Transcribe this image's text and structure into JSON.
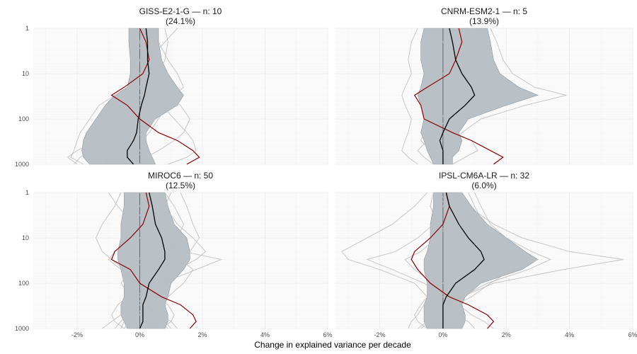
{
  "chart_data": {
    "type": "line",
    "xlabel": "Change in explained variance per decade",
    "ylabel": "",
    "xlim": [
      -3.4,
      6
    ],
    "ylim": [
      1,
      1000
    ],
    "y_scale": "log",
    "y_reversed": true,
    "x_ticks": [
      -2,
      0,
      2,
      4,
      6
    ],
    "x_tick_labels": [
      "-2%",
      "0%",
      "2%",
      "4%",
      "6%"
    ],
    "y_ticks": [
      1,
      10,
      100,
      1000
    ],
    "y_tick_labels": [
      "1",
      "10",
      "100",
      "1000"
    ],
    "grid": true,
    "legend": "none",
    "colors": {
      "panel_bg": "#fafafa",
      "grid": "#ebebeb",
      "band": "#b5bec4",
      "band_edge": "#8f999f",
      "member": "#bdbdbd",
      "median": "#000000",
      "reference": "#8b0000",
      "zero_line": "#666666"
    },
    "panels": [
      {
        "title": "GISS-E2-1-G — n: 10",
        "subtitle": "(24.1%)",
        "levels": [
          1,
          2,
          5,
          10,
          20,
          30,
          50,
          100,
          200,
          300,
          500,
          700,
          1000
        ],
        "band_low": [
          -0.35,
          -0.35,
          -0.3,
          -0.3,
          -0.4,
          -0.8,
          -1.1,
          -1.4,
          -1.7,
          -1.8,
          -1.85,
          -1.8,
          -1.6
        ],
        "band_high": [
          0.6,
          0.6,
          0.7,
          0.9,
          1.2,
          1.4,
          1.2,
          0.5,
          0.2,
          0.2,
          0.3,
          0.4,
          0.5
        ],
        "median": [
          0.2,
          0.25,
          0.25,
          0.3,
          0.2,
          0.15,
          0.05,
          -0.05,
          -0.1,
          -0.2,
          -0.4,
          -0.4,
          -0.2
        ],
        "reference": [
          0.0,
          0.2,
          0.3,
          0.1,
          -0.5,
          -0.9,
          -0.4,
          0.0,
          0.6,
          1.2,
          1.7,
          1.9,
          1.5
        ],
        "members": [
          [
            0.5,
            0.4,
            0.3,
            0.2,
            0.1,
            0.0,
            -0.2,
            -0.3,
            -0.5,
            -0.8,
            -1.0,
            -1.1,
            -1.0
          ],
          [
            -0.3,
            -0.1,
            0.2,
            0.5,
            0.8,
            1.0,
            0.9,
            0.6,
            0.3,
            0.1,
            0.0,
            -0.1,
            0.0
          ],
          [
            1.2,
            0.8,
            0.3,
            0.1,
            -0.3,
            -0.8,
            -1.3,
            -1.6,
            -1.9,
            -2.0,
            -2.1,
            -2.2,
            -1.8
          ],
          [
            0.2,
            0.4,
            0.6,
            0.7,
            0.5,
            0.2,
            -0.2,
            -0.5,
            -0.9,
            -1.4,
            -2.0,
            -2.3,
            -2.0
          ],
          [
            -0.2,
            -0.3,
            -0.2,
            0.0,
            0.4,
            0.9,
            1.3,
            1.6,
            1.4,
            1.1,
            0.6,
            0.2,
            0.0
          ],
          [
            0.8,
            0.9,
            0.8,
            0.6,
            0.4,
            0.6,
            0.8,
            0.5,
            0.1,
            -0.3,
            -0.7,
            -0.9,
            -0.6
          ],
          [
            0.0,
            0.1,
            0.3,
            0.4,
            0.1,
            -0.4,
            -1.0,
            -1.3,
            -1.1,
            -0.7,
            -0.3,
            0.2,
            0.5
          ],
          [
            0.3,
            0.2,
            0.0,
            -0.1,
            0.0,
            0.3,
            0.7,
            1.1,
            1.5,
            1.7,
            1.8,
            1.5,
            0.9
          ],
          [
            -0.1,
            0.0,
            0.1,
            0.2,
            0.3,
            0.2,
            0.0,
            -0.2,
            -0.4,
            -0.6,
            -0.8,
            -1.0,
            -1.2
          ],
          [
            0.4,
            0.6,
            0.9,
            1.2,
            1.4,
            1.1,
            0.6,
            0.0,
            -0.6,
            -1.1,
            -1.6,
            -1.9,
            -2.1
          ]
        ]
      },
      {
        "title": "CNRM-ESM2-1 — n: 5",
        "subtitle": "(13.9%)",
        "levels": [
          1,
          2,
          5,
          10,
          20,
          30,
          50,
          100,
          200,
          300,
          500,
          700,
          1000
        ],
        "band_low": [
          -0.6,
          -0.7,
          -0.7,
          -0.6,
          -0.7,
          -0.8,
          -0.7,
          -0.6,
          -0.7,
          -0.6,
          -0.5,
          -0.4,
          -0.3
        ],
        "band_high": [
          1.4,
          1.5,
          1.6,
          1.8,
          2.4,
          3.0,
          2.0,
          0.8,
          0.5,
          0.6,
          0.5,
          0.3,
          0.3
        ],
        "median": [
          0.2,
          0.3,
          0.4,
          0.6,
          0.9,
          1.0,
          0.7,
          0.2,
          0.0,
          -0.1,
          0.0,
          0.0,
          0.0
        ],
        "reference": [
          0.5,
          0.6,
          0.4,
          0.2,
          -0.5,
          -0.9,
          -0.7,
          -0.6,
          0.3,
          0.9,
          1.5,
          1.9,
          1.6
        ],
        "members": [
          [
            1.5,
            1.7,
            1.9,
            2.2,
            2.9,
            3.9,
            2.6,
            1.2,
            0.6,
            0.4,
            0.2,
            0.1,
            0.0
          ],
          [
            -0.8,
            -1.0,
            -1.1,
            -1.0,
            -1.2,
            -1.3,
            -1.2,
            -1.0,
            -1.1,
            -1.2,
            -1.3,
            -1.1,
            -0.8
          ],
          [
            0.4,
            0.5,
            0.7,
            1.2,
            1.8,
            2.4,
            1.6,
            0.6,
            0.3,
            0.9,
            1.1,
            0.7,
            0.3
          ],
          [
            -0.2,
            0.0,
            0.3,
            0.1,
            -0.3,
            -0.6,
            -0.3,
            0.1,
            -0.2,
            -0.5,
            -0.8,
            -0.6,
            -0.3
          ],
          [
            0.9,
            0.7,
            0.2,
            0.0,
            0.4,
            0.9,
            0.5,
            -0.1,
            -0.6,
            -0.7,
            -0.4,
            0.0,
            0.3
          ]
        ]
      },
      {
        "title": "MIROC6 — n: 50",
        "subtitle": "(12.5%)",
        "levels": [
          1,
          2,
          5,
          10,
          20,
          30,
          50,
          100,
          200,
          300,
          500,
          700,
          1000
        ],
        "band_low": [
          -0.5,
          -0.5,
          -0.6,
          -0.6,
          -0.7,
          -0.7,
          -0.6,
          -0.5,
          -0.5,
          -0.6,
          -0.6,
          -0.5,
          -0.4
        ],
        "band_high": [
          0.8,
          0.9,
          1.1,
          1.5,
          1.6,
          1.6,
          1.4,
          1.0,
          0.9,
          0.8,
          0.9,
          0.9,
          0.8
        ],
        "median": [
          0.3,
          0.4,
          0.5,
          0.7,
          0.8,
          0.8,
          0.6,
          0.3,
          0.2,
          0.1,
          0.1,
          0.1,
          0.0
        ],
        "reference": [
          0.2,
          0.3,
          0.1,
          -0.3,
          -0.8,
          -0.9,
          -0.3,
          0.0,
          0.7,
          1.3,
          1.7,
          1.8,
          1.6
        ],
        "members": [
          [
            0.6,
            0.8,
            1.2,
            1.7,
            2.1,
            1.8,
            1.2,
            0.6,
            0.2,
            0.0,
            -0.2,
            -0.3,
            -0.2
          ],
          [
            -0.6,
            -0.8,
            -1.2,
            -1.4,
            -1.2,
            -0.9,
            -0.5,
            -0.2,
            -0.4,
            -0.7,
            -0.9,
            -0.8,
            -0.5
          ],
          [
            1.0,
            0.8,
            0.4,
            0.2,
            0.6,
            1.3,
            1.7,
            1.4,
            0.9,
            0.5,
            0.3,
            0.6,
            0.9
          ],
          [
            0.0,
            0.3,
            0.8,
            1.2,
            0.9,
            0.3,
            -0.3,
            -0.6,
            -0.3,
            0.2,
            0.6,
            0.4,
            0.1
          ],
          [
            -0.3,
            -0.5,
            -0.4,
            0.0,
            0.5,
            1.0,
            0.8,
            0.3,
            -0.1,
            -0.4,
            -0.6,
            -0.9,
            -1.2
          ],
          [
            0.4,
            0.3,
            0.1,
            -0.3,
            -0.8,
            -1.0,
            -0.6,
            0.0,
            0.5,
            0.9,
            1.1,
            1.0,
            0.7
          ],
          [
            1.3,
            1.5,
            1.7,
            1.9,
            1.6,
            1.1,
            0.6,
            0.2,
            0.0,
            -0.2,
            -0.4,
            -0.6,
            -0.8
          ],
          [
            -1.0,
            -0.7,
            -0.2,
            0.4,
            1.1,
            1.4,
            1.0,
            0.4,
            0.1,
            0.3,
            0.7,
            1.0,
            1.2
          ],
          [
            0.2,
            0.0,
            -0.3,
            -0.6,
            -0.4,
            0.1,
            0.6,
            0.9,
            0.6,
            0.2,
            -0.1,
            -0.3,
            -0.5
          ],
          [
            0.8,
            1.1,
            1.4,
            1.2,
            0.6,
            0.0,
            -0.4,
            -0.5,
            -0.2,
            0.2,
            0.5,
            0.8,
            1.0
          ],
          [
            -0.4,
            -0.2,
            0.2,
            0.6,
            1.4,
            2.6,
            1.8,
            0.7,
            0.3,
            0.1,
            0.0,
            -0.1,
            -0.2
          ],
          [
            0.5,
            0.6,
            0.7,
            0.9,
            1.2,
            1.5,
            1.3,
            0.8,
            0.4,
            0.0,
            -0.3,
            -0.5,
            -0.6
          ]
        ]
      },
      {
        "title": "IPSL-CM6A-LR — n: 32",
        "subtitle": "(6.0%)",
        "levels": [
          1,
          2,
          5,
          10,
          20,
          30,
          50,
          100,
          200,
          300,
          500,
          700,
          1000
        ],
        "band_low": [
          -0.3,
          -0.3,
          -0.4,
          -0.4,
          -0.5,
          -0.6,
          -0.6,
          -0.5,
          -0.5,
          -0.6,
          -0.6,
          -0.6,
          -0.5
        ],
        "band_high": [
          0.6,
          0.9,
          1.4,
          2.0,
          2.6,
          3.0,
          2.5,
          1.2,
          0.7,
          0.6,
          0.7,
          0.7,
          0.6
        ],
        "median": [
          0.1,
          0.2,
          0.5,
          0.8,
          1.2,
          1.3,
          1.0,
          0.4,
          0.1,
          0.0,
          0.0,
          0.0,
          0.0
        ],
        "reference": [
          0.1,
          0.2,
          0.0,
          -0.4,
          -0.9,
          -1.0,
          -0.8,
          -0.4,
          0.2,
          0.8,
          1.4,
          1.6,
          1.4
        ],
        "members": [
          [
            0.3,
            0.8,
            1.6,
            2.5,
            4.0,
            5.7,
            3.8,
            1.6,
            0.6,
            0.3,
            0.1,
            0.0,
            -0.1
          ],
          [
            -0.5,
            -0.9,
            -1.6,
            -2.4,
            -3.2,
            -3.0,
            -2.0,
            -0.9,
            -0.5,
            -0.7,
            -0.9,
            -0.8,
            -0.5
          ],
          [
            1.0,
            1.2,
            1.5,
            2.0,
            2.8,
            3.4,
            2.7,
            1.4,
            0.6,
            0.5,
            0.9,
            1.3,
            1.6
          ],
          [
            -0.2,
            0.1,
            0.6,
            1.1,
            1.3,
            0.9,
            0.4,
            0.0,
            -0.3,
            -0.6,
            -0.8,
            -1.0,
            -1.1
          ],
          [
            0.6,
            0.5,
            0.2,
            -0.2,
            -0.7,
            -1.2,
            -0.9,
            -0.3,
            0.1,
            0.4,
            0.6,
            0.5,
            0.2
          ],
          [
            0.0,
            0.3,
            0.9,
            1.6,
            2.2,
            2.5,
            2.2,
            1.5,
            0.9,
            0.4,
            0.0,
            -0.4,
            -0.7
          ],
          [
            -0.3,
            -0.4,
            -0.2,
            0.4,
            1.0,
            1.6,
            1.3,
            0.5,
            -0.2,
            -0.5,
            -0.3,
            0.2,
            0.6
          ],
          [
            0.8,
            1.0,
            1.3,
            1.6,
            1.9,
            2.0,
            1.5,
            0.7,
            0.3,
            0.1,
            -0.2,
            -0.5,
            -0.8
          ],
          [
            0.2,
            0.0,
            -0.3,
            -0.8,
            -1.5,
            -2.4,
            -1.6,
            -0.6,
            0.0,
            0.3,
            0.5,
            0.4,
            0.3
          ],
          [
            -0.1,
            0.2,
            0.7,
            1.3,
            2.1,
            3.0,
            2.4,
            1.1,
            0.4,
            0.2,
            0.4,
            0.8,
            1.0
          ]
        ]
      }
    ]
  }
}
